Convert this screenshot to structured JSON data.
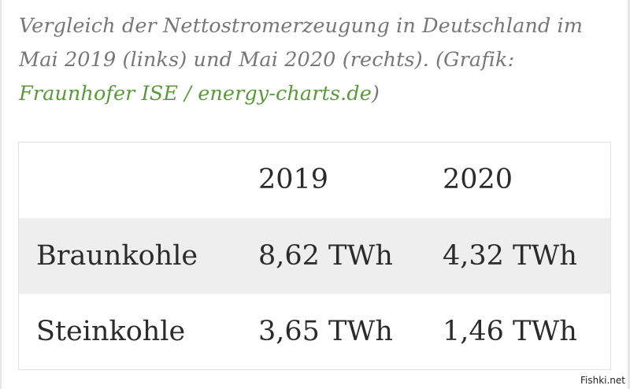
{
  "caption": {
    "line1": "Vergleich der Nettostromerzeugung in Deutschland im",
    "line2": "Mai 2019 (links) und Mai 2020 (rechts). (Grafik:",
    "credit_link": "Fraunhofer ISE / energy-charts.de",
    "credit_close": ")"
  },
  "table": {
    "header": [
      "",
      "2019",
      "2020"
    ],
    "rows": [
      [
        "Braunkohle",
        "8,62 TWh",
        "4,32 TWh"
      ],
      [
        "Steinkohle",
        "3,65 TWh",
        "1,46 TWh"
      ]
    ]
  },
  "watermark": "Fishki.net",
  "colors": {
    "link_green": "#5a9a3a",
    "caption_gray": "#777777",
    "striped_row": "#eeeeee"
  }
}
